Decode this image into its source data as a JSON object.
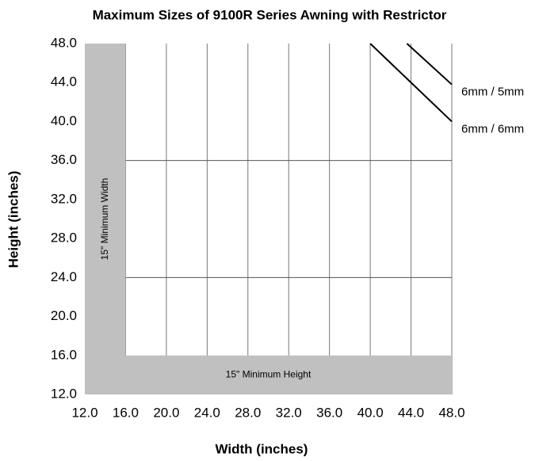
{
  "chart_data": {
    "type": "line",
    "title": "Maximum Sizes of 9100R Series Awning with Restrictor",
    "xlabel": "Width (inches)",
    "ylabel": "Height (inches)",
    "xlim": [
      12,
      48
    ],
    "ylim": [
      12,
      48
    ],
    "xticks": [
      {
        "value": 12,
        "label": "12.0"
      },
      {
        "value": 16,
        "label": "16.0"
      },
      {
        "value": 20,
        "label": "20.0"
      },
      {
        "value": 24,
        "label": "24.0"
      },
      {
        "value": 28,
        "label": "28.0"
      },
      {
        "value": 32,
        "label": "32.0"
      },
      {
        "value": 36,
        "label": "36.0"
      },
      {
        "value": 40,
        "label": "40.0"
      },
      {
        "value": 44,
        "label": "44.0"
      },
      {
        "value": 48,
        "label": "48.0"
      }
    ],
    "yticks": [
      {
        "value": 12,
        "label": "12.0"
      },
      {
        "value": 16,
        "label": "16.0"
      },
      {
        "value": 20,
        "label": "20.0"
      },
      {
        "value": 24,
        "label": "24.0"
      },
      {
        "value": 28,
        "label": "28.0"
      },
      {
        "value": 32,
        "label": "32.0"
      },
      {
        "value": 36,
        "label": "36.0"
      },
      {
        "value": 40,
        "label": "40.0"
      },
      {
        "value": 44,
        "label": "44.0"
      },
      {
        "value": 48,
        "label": "48.0"
      }
    ],
    "ygrid": [
      24,
      36
    ],
    "regions": [
      {
        "label": "15\" Minimum Width",
        "xlim": [
          12,
          16
        ],
        "ylim": [
          12,
          48
        ],
        "color": "#c0c0c0"
      },
      {
        "label": "15\" Minimum Height",
        "xlim": [
          12,
          48
        ],
        "ylim": [
          12,
          16
        ],
        "color": "#c0c0c0"
      }
    ],
    "series": [
      {
        "name": "6mm / 5mm",
        "color": "#000000",
        "x": [
          43.6,
          48
        ],
        "values": [
          48,
          43.8
        ]
      },
      {
        "name": "6mm / 6mm",
        "color": "#000000",
        "x": [
          40,
          44,
          48
        ],
        "values": [
          48,
          44,
          40
        ]
      }
    ]
  }
}
